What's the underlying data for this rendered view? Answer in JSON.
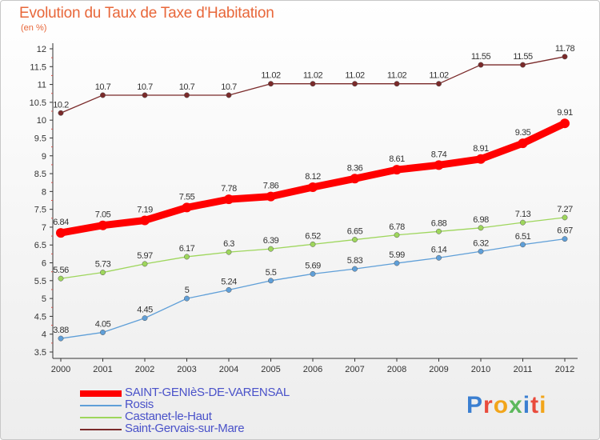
{
  "header": {
    "title": "Evolution du Taux de Taxe d'Habitation",
    "unit": "(en %)"
  },
  "logo": {
    "text": "Proxiti"
  },
  "chart_data": {
    "type": "line",
    "categories": [
      "2000",
      "2001",
      "2002",
      "2003",
      "2004",
      "2005",
      "2006",
      "2007",
      "2008",
      "2009",
      "2010",
      "2011",
      "2012"
    ],
    "ylim": [
      3.5,
      12
    ],
    "yticks": [
      "3.5",
      "4",
      "4.5",
      "5",
      "5.5",
      "6",
      "6.5",
      "7",
      "7.5",
      "8",
      "8.5",
      "9",
      "9.5",
      "10",
      "10.5",
      "11",
      "11.5",
      "12"
    ],
    "series": [
      {
        "name": "SAINT-GENIèS-DE-VARENSAL",
        "color": "#ff0000",
        "values": [
          6.84,
          7.05,
          7.19,
          7.55,
          7.78,
          7.86,
          8.12,
          8.36,
          8.61,
          8.74,
          8.91,
          9.35,
          9.91
        ],
        "labels": [
          "6.84",
          "7.05",
          "7.19",
          "7.55",
          "7.78",
          "7.86",
          "8.12",
          "8.36",
          "8.61",
          "8.74",
          "8.91",
          "9.35",
          "9.91"
        ]
      },
      {
        "name": "Rosis",
        "color": "#5f9fd8",
        "values": [
          3.88,
          4.05,
          4.45,
          5,
          5.24,
          5.5,
          5.69,
          5.83,
          5.99,
          6.14,
          6.32,
          6.51,
          6.67
        ],
        "labels": [
          "3.88",
          "4.05",
          "4.45",
          "5",
          "5.24",
          "5.5",
          "5.69",
          "5.83",
          "5.99",
          "6.14",
          "6.32",
          "6.51",
          "6.67"
        ]
      },
      {
        "name": "Castanet-le-Haut",
        "color": "#9ed65c",
        "values": [
          5.56,
          5.73,
          5.97,
          6.17,
          6.3,
          6.39,
          6.52,
          6.65,
          6.78,
          6.88,
          6.98,
          7.13,
          7.27
        ],
        "labels": [
          "5.56",
          "5.73",
          "5.97",
          "6.17",
          "6.3",
          "6.39",
          "6.52",
          "6.65",
          "6.78",
          "6.88",
          "6.98",
          "7.13",
          "7.27"
        ]
      },
      {
        "name": "Saint-Gervais-sur-Mare",
        "color": "#7a2a2a",
        "values": [
          10.2,
          10.7,
          10.7,
          10.7,
          10.7,
          11.02,
          11.02,
          11.02,
          11.02,
          11.02,
          11.55,
          11.55,
          11.78
        ],
        "labels": [
          "10.2",
          "10.7",
          "10.7",
          "10.7",
          "10.7",
          "11.02",
          "11.02",
          "11.02",
          "11.02",
          "11.02",
          "11.55",
          "11.55",
          "11.78"
        ]
      }
    ],
    "grid": false,
    "legend": "bottom-left"
  }
}
